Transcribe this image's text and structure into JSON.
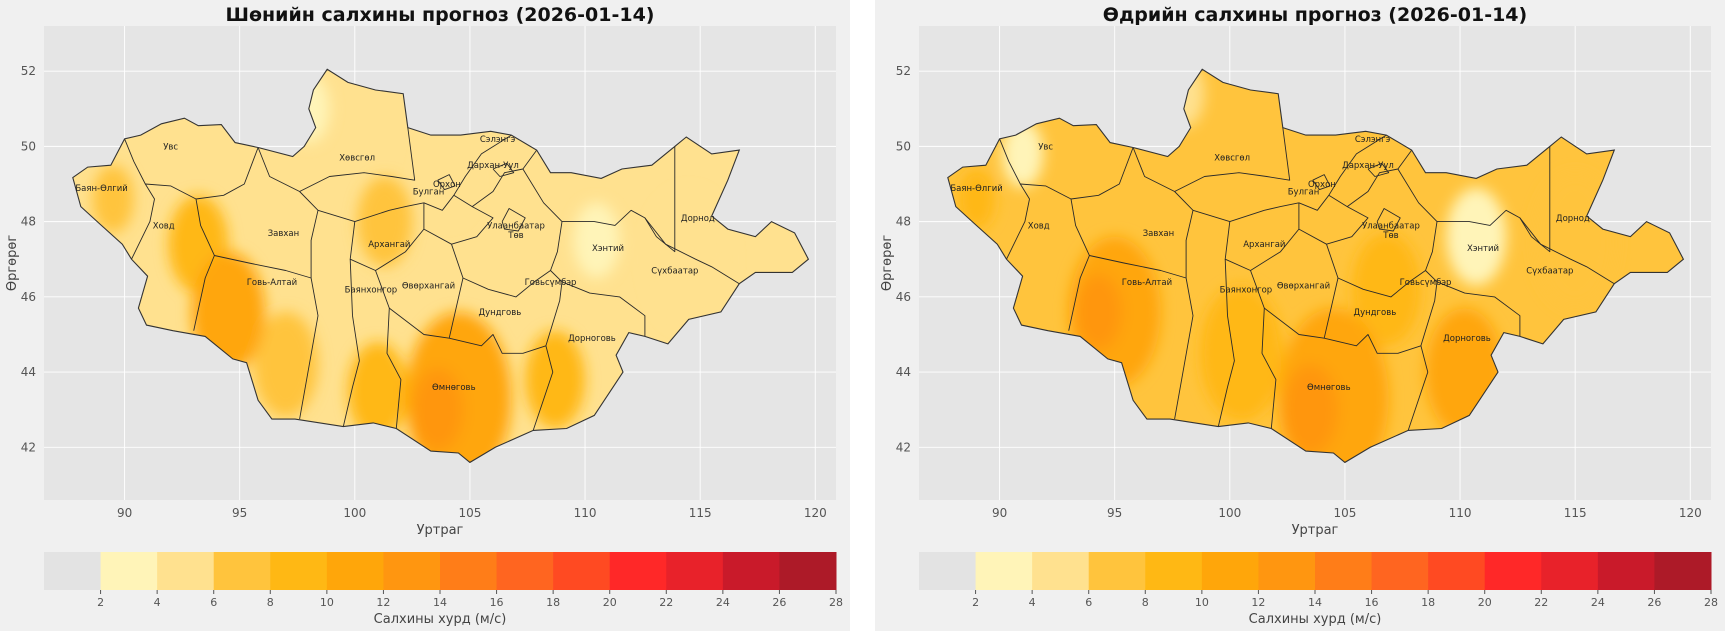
{
  "figure": {
    "colorbar_label": "Салхины хурд (м/с)",
    "colors": {
      "panel_bg": "#f0f0f0",
      "plot_bg": "#e5e5e5",
      "grid": "#ffffff",
      "border": "#333333"
    }
  },
  "chart_data": [
    {
      "type": "heatmap",
      "title": "Шөнийн салхины прогноз (2026-01-14)",
      "xlabel": "Уртраг",
      "ylabel": "Өргөрөг",
      "xlim": [
        86.5,
        120.9
      ],
      "ylim": [
        40.6,
        53.2
      ],
      "xticks": [
        90,
        95,
        100,
        105,
        110,
        115,
        120
      ],
      "yticks": [
        42,
        44,
        46,
        48,
        50,
        52
      ],
      "colorbar": {
        "bounds": [
          0,
          2,
          4,
          6,
          8,
          10,
          12,
          14,
          16,
          18,
          20,
          22,
          24,
          26,
          28
        ],
        "tick_labels": [
          "2",
          "4",
          "6",
          "8",
          "10",
          "12",
          "14",
          "16",
          "18",
          "20",
          "22",
          "24",
          "26",
          "28"
        ],
        "colors": [
          "#e3e3e3",
          "#fff4b8",
          "#ffe18f",
          "#ffc43d",
          "#ffb814",
          "#ffa60a",
          "#ff9610",
          "#ff7d18",
          "#ff6520",
          "#ff4a22",
          "#ff2828",
          "#e8222a",
          "#c91a2a",
          "#ad1a28"
        ]
      },
      "base_level": 2,
      "features": [
        {
          "lon": 94.5,
          "lat": 45.6,
          "r": 1.6,
          "level": 5
        },
        {
          "lon": 93.2,
          "lat": 47.4,
          "r": 1.3,
          "level": 4
        },
        {
          "lon": 104.5,
          "lat": 43.3,
          "r": 2.3,
          "level": 5
        },
        {
          "lon": 103.6,
          "lat": 43.0,
          "r": 1.1,
          "level": 6
        },
        {
          "lon": 108.7,
          "lat": 43.8,
          "r": 1.3,
          "level": 4
        },
        {
          "lon": 101.0,
          "lat": 43.5,
          "r": 1.3,
          "level": 4
        },
        {
          "lon": 97.0,
          "lat": 44.2,
          "r": 1.4,
          "level": 3
        },
        {
          "lon": 101.3,
          "lat": 48.0,
          "r": 1.2,
          "level": 3
        },
        {
          "lon": 89.5,
          "lat": 48.6,
          "r": 0.9,
          "level": 3
        },
        {
          "lon": 98.0,
          "lat": 51.0,
          "r": 0.9,
          "level": 1
        },
        {
          "lon": 110.5,
          "lat": 47.5,
          "r": 1.0,
          "level": 1
        },
        {
          "lon": 104.0,
          "lat": 49.2,
          "r": 1.2,
          "level": 2
        },
        {
          "lon": 114.5,
          "lat": 47.0,
          "r": 1.8,
          "level": 2
        }
      ],
      "provinces": [
        {
          "name": "Баян-Өлгий",
          "lon": 89.0,
          "lat": 48.9
        },
        {
          "name": "Увс",
          "lon": 92.0,
          "lat": 50.0
        },
        {
          "name": "Ховд",
          "lon": 91.7,
          "lat": 47.9
        },
        {
          "name": "Завхан",
          "lon": 96.9,
          "lat": 47.7
        },
        {
          "name": "Говь-Алтай",
          "lon": 96.4,
          "lat": 46.4
        },
        {
          "name": "Хөвсгөл",
          "lon": 100.1,
          "lat": 49.7
        },
        {
          "name": "Архангай",
          "lon": 101.5,
          "lat": 47.4
        },
        {
          "name": "Баянхонгор",
          "lon": 100.7,
          "lat": 46.2
        },
        {
          "name": "Булган",
          "lon": 103.2,
          "lat": 48.8
        },
        {
          "name": "Орхон",
          "lon": 104.0,
          "lat": 49.0
        },
        {
          "name": "Сэлэнгэ",
          "lon": 106.2,
          "lat": 50.2
        },
        {
          "name": "Дархан-Уул",
          "lon": 106.0,
          "lat": 49.5
        },
        {
          "name": "Улаанбаатар",
          "lon": 107.0,
          "lat": 47.9
        },
        {
          "name": "Төв",
          "lon": 107.0,
          "lat": 47.65
        },
        {
          "name": "Өвөрхангай",
          "lon": 103.2,
          "lat": 46.3
        },
        {
          "name": "Дундговь",
          "lon": 106.3,
          "lat": 45.6
        },
        {
          "name": "Говьсүмбэр",
          "lon": 108.5,
          "lat": 46.4
        },
        {
          "name": "Хэнтий",
          "lon": 111.0,
          "lat": 47.3
        },
        {
          "name": "Сүхбаатар",
          "lon": 113.9,
          "lat": 46.7
        },
        {
          "name": "Дорнод",
          "lon": 114.9,
          "lat": 48.1
        },
        {
          "name": "Дорноговь",
          "lon": 110.3,
          "lat": 44.9
        },
        {
          "name": "Өмнөговь",
          "lon": 104.3,
          "lat": 43.6
        }
      ]
    },
    {
      "type": "heatmap",
      "title": "Өдрийн салхины прогноз (2026-01-14)",
      "xlabel": "Уртраг",
      "ylabel": "Өргөрөг",
      "xlim": [
        86.5,
        120.9
      ],
      "ylim": [
        40.6,
        53.2
      ],
      "xticks": [
        90,
        95,
        100,
        105,
        110,
        115,
        120
      ],
      "yticks": [
        42,
        44,
        46,
        48,
        50,
        52
      ],
      "colorbar": {
        "bounds": [
          0,
          2,
          4,
          6,
          8,
          10,
          12,
          14,
          16,
          18,
          20,
          22,
          24,
          26,
          28
        ],
        "tick_labels": [
          "2",
          "4",
          "6",
          "8",
          "10",
          "12",
          "14",
          "16",
          "18",
          "20",
          "22",
          "24",
          "26",
          "28"
        ],
        "colors": [
          "#e3e3e3",
          "#fff4b8",
          "#ffe18f",
          "#ffc43d",
          "#ffb814",
          "#ffa60a",
          "#ff9610",
          "#ff7d18",
          "#ff6520",
          "#ff4a22",
          "#ff2828",
          "#e8222a",
          "#c91a2a",
          "#ad1a28"
        ]
      },
      "base_level": 3,
      "features": [
        {
          "lon": 95.0,
          "lat": 45.6,
          "r": 2.0,
          "level": 5
        },
        {
          "lon": 94.3,
          "lat": 45.6,
          "r": 1.0,
          "level": 6
        },
        {
          "lon": 104.5,
          "lat": 43.3,
          "r": 2.4,
          "level": 5
        },
        {
          "lon": 103.5,
          "lat": 43.0,
          "r": 1.2,
          "level": 6
        },
        {
          "lon": 110.2,
          "lat": 44.0,
          "r": 1.7,
          "level": 5
        },
        {
          "lon": 100.5,
          "lat": 44.5,
          "r": 1.8,
          "level": 4
        },
        {
          "lon": 106.8,
          "lat": 46.2,
          "r": 1.5,
          "level": 4
        },
        {
          "lon": 110.7,
          "lat": 47.6,
          "r": 1.3,
          "level": 1
        },
        {
          "lon": 91.0,
          "lat": 49.8,
          "r": 0.9,
          "level": 1
        },
        {
          "lon": 98.0,
          "lat": 51.4,
          "r": 0.9,
          "level": 2
        },
        {
          "lon": 115.0,
          "lat": 47.5,
          "r": 1.8,
          "level": 3
        },
        {
          "lon": 89.0,
          "lat": 48.6,
          "r": 0.8,
          "level": 4
        }
      ],
      "provinces": [
        {
          "name": "Баян-Өлгий",
          "lon": 89.0,
          "lat": 48.9
        },
        {
          "name": "Увс",
          "lon": 92.0,
          "lat": 50.0
        },
        {
          "name": "Ховд",
          "lon": 91.7,
          "lat": 47.9
        },
        {
          "name": "Завхан",
          "lon": 96.9,
          "lat": 47.7
        },
        {
          "name": "Говь-Алтай",
          "lon": 96.4,
          "lat": 46.4
        },
        {
          "name": "Хөвсгөл",
          "lon": 100.1,
          "lat": 49.7
        },
        {
          "name": "Архангай",
          "lon": 101.5,
          "lat": 47.4
        },
        {
          "name": "Баянхонгор",
          "lon": 100.7,
          "lat": 46.2
        },
        {
          "name": "Булган",
          "lon": 103.2,
          "lat": 48.8
        },
        {
          "name": "Орхон",
          "lon": 104.0,
          "lat": 49.0
        },
        {
          "name": "Сэлэнгэ",
          "lon": 106.2,
          "lat": 50.2
        },
        {
          "name": "Дархан-Уул",
          "lon": 106.0,
          "lat": 49.5
        },
        {
          "name": "Улаанбаатар",
          "lon": 107.0,
          "lat": 47.9
        },
        {
          "name": "Төв",
          "lon": 107.0,
          "lat": 47.65
        },
        {
          "name": "Өвөрхангай",
          "lon": 103.2,
          "lat": 46.3
        },
        {
          "name": "Дундговь",
          "lon": 106.3,
          "lat": 45.6
        },
        {
          "name": "Говьсүмбэр",
          "lon": 108.5,
          "lat": 46.4
        },
        {
          "name": "Хэнтий",
          "lon": 111.0,
          "lat": 47.3
        },
        {
          "name": "Сүхбаатар",
          "lon": 113.9,
          "lat": 46.7
        },
        {
          "name": "Дорнод",
          "lon": 114.9,
          "lat": 48.1
        },
        {
          "name": "Дорноговь",
          "lon": 110.3,
          "lat": 44.9
        },
        {
          "name": "Өмнөговь",
          "lon": 104.3,
          "lat": 43.6
        }
      ]
    }
  ]
}
